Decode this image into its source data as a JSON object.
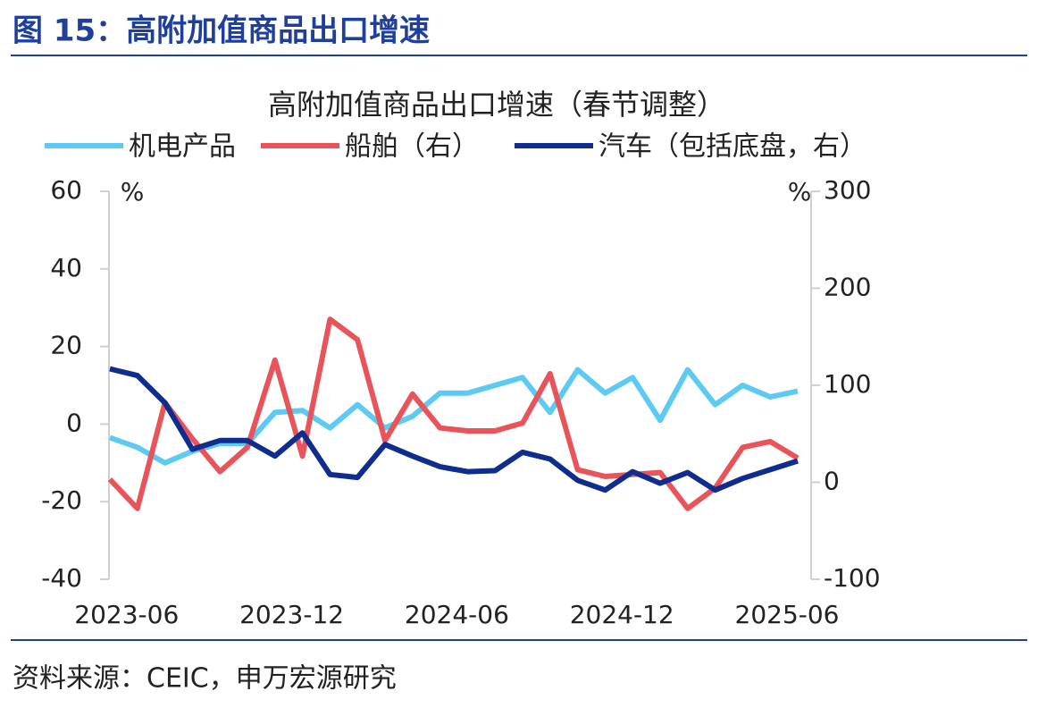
{
  "header": {
    "title": "图 15：高附加值商品出口增速"
  },
  "chart_data": {
    "type": "line",
    "title": "高附加值商品出口增速（春节调整）",
    "y_unit": "%",
    "y2_unit": "%",
    "categories": [
      null,
      "2023-06",
      null,
      null,
      null,
      null,
      null,
      "2023-12",
      null,
      null,
      null,
      null,
      null,
      "2024-06",
      null,
      null,
      null,
      null,
      null,
      "2024-12",
      null,
      null,
      null,
      null,
      null,
      "2025-06"
    ],
    "ylim": [
      -40,
      60
    ],
    "yticks": [
      -40,
      -20,
      0,
      20,
      40,
      60
    ],
    "y2lim": [
      -100,
      300
    ],
    "y2ticks": [
      -100,
      0,
      100,
      200,
      300
    ],
    "series": [
      {
        "name": "机电产品",
        "color": "#5ccaf2",
        "values": [
          -3.5,
          -6,
          -10,
          -7,
          -5,
          -5,
          3,
          3.5,
          -1,
          5,
          -1,
          2,
          8,
          8,
          10,
          12,
          3,
          14,
          8,
          12,
          1,
          14,
          5,
          10,
          7,
          8.5
        ]
      },
      {
        "name": "船舶（右）",
        "color": "#e8545a",
        "axis": "y2",
        "values": [
          3,
          -27,
          82,
          45,
          11,
          36,
          126,
          27,
          168,
          147,
          43,
          91,
          56,
          53,
          53,
          61,
          112,
          13,
          6,
          8,
          10,
          -27,
          -6,
          36,
          42,
          25
        ]
      },
      {
        "name": "汽车（包括底盘，右）",
        "color": "#0f2d8f",
        "axis": "y2",
        "values": [
          117,
          110,
          82,
          34,
          43,
          43,
          27,
          51,
          8,
          5,
          39,
          27,
          16,
          11,
          12,
          31,
          24,
          2,
          -8,
          11,
          -1,
          10,
          -8,
          4,
          13,
          22
        ]
      }
    ]
  },
  "footer": {
    "source": "资料来源：CEIC，申万宏源研究"
  }
}
